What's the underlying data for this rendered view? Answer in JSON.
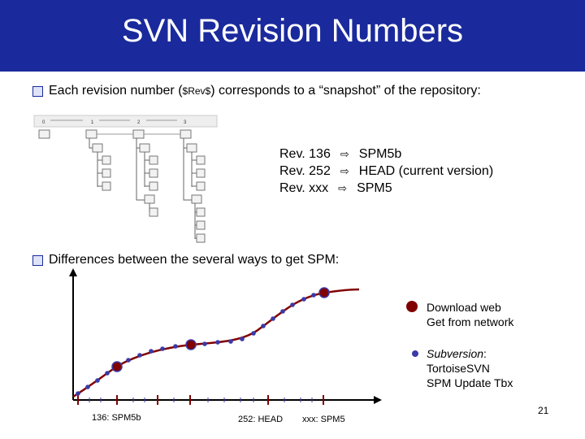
{
  "slide": {
    "title": "SVN Revision Numbers",
    "bullet1": {
      "prefix": "Each revision number (",
      "rev": "$Rev$",
      "suffix": ") corresponds to a “snapshot” of the repository:"
    },
    "tree_columns": [
      "0",
      "1",
      "2",
      "3"
    ],
    "revisions": [
      {
        "rev": "Rev. 136",
        "target": "SPM5b"
      },
      {
        "rev": "Rev. 252",
        "target": "HEAD (current version)"
      },
      {
        "rev": "Rev. xxx",
        "target": "SPM5"
      }
    ],
    "bullet2": "Differences between the several ways to get SPM:",
    "legend": {
      "big_line1": "Download web",
      "big_line2": "Get from network",
      "small_line1": "Subversion",
      "small_line1_suffix": ":",
      "small_line2": "TortoiseSVN",
      "small_line3": "SPM Update Tbx"
    },
    "axis_labels": {
      "rev136": "136: SPM5b",
      "rev252": "252: HEAD",
      "revxxx": "xxx: SPM5"
    },
    "page_number": "21",
    "colors": {
      "title_bar": "#1a2a9c",
      "curve": "#800000",
      "small_dot": "#3a3aa8"
    },
    "icons": {
      "bullet": "checkbox-bullet",
      "arrow": "hollow-right-arrow"
    }
  }
}
